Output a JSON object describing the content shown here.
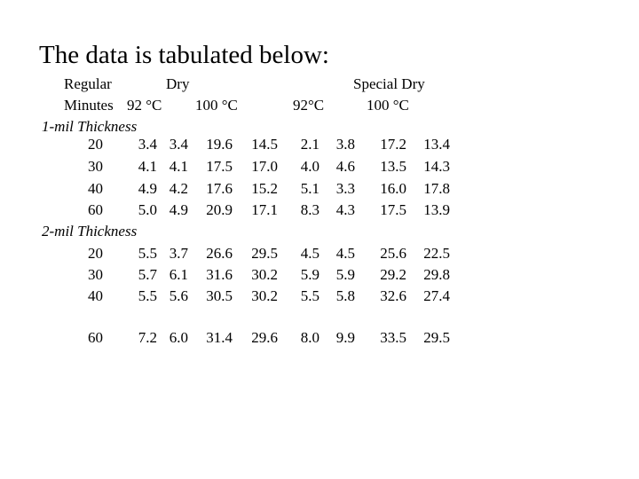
{
  "header": {
    "title": "The data is tabulated below:"
  },
  "table": {
    "group_headers": [
      "Regular",
      "Dry",
      "Special Dry"
    ],
    "column_headers": [
      "Minutes",
      "92 °C",
      "100 °C",
      "92°C",
      "100 °C"
    ],
    "sections": [
      {
        "label": "1-mil Thickness",
        "rows": [
          [
            "20",
            "3.4",
            "3.4",
            "19.6",
            "14.5",
            "2.1",
            "3.8",
            "17.2",
            "13.4"
          ],
          [
            "30",
            "4.1",
            "4.1",
            "17.5",
            "17.0",
            "4.0",
            "4.6",
            "13.5",
            "14.3"
          ],
          [
            "40",
            "4.9",
            "4.2",
            "17.6",
            "15.2",
            "5.1",
            "3.3",
            "16.0",
            "17.8"
          ],
          [
            "60",
            "5.0",
            "4.9",
            "20.9",
            "17.1",
            "8.3",
            "4.3",
            "17.5",
            "13.9"
          ]
        ]
      },
      {
        "label": "2-mil Thickness",
        "rows": [
          [
            "20",
            "5.5",
            "3.7",
            "26.6",
            "29.5",
            "4.5",
            "4.5",
            "25.6",
            "22.5"
          ],
          [
            "30",
            "5.7",
            "6.1",
            "31.6",
            "30.2",
            "5.9",
            "5.9",
            "29.2",
            "29.8"
          ],
          [
            "40",
            "5.5",
            "5.6",
            "30.5",
            "30.2",
            "5.5",
            "5.8",
            "32.6",
            "27.4"
          ],
          [
            "60",
            "7.2",
            "6.0",
            "31.4",
            "29.6",
            "8.0",
            "9.9",
            "33.5",
            "29.5"
          ]
        ]
      }
    ]
  }
}
